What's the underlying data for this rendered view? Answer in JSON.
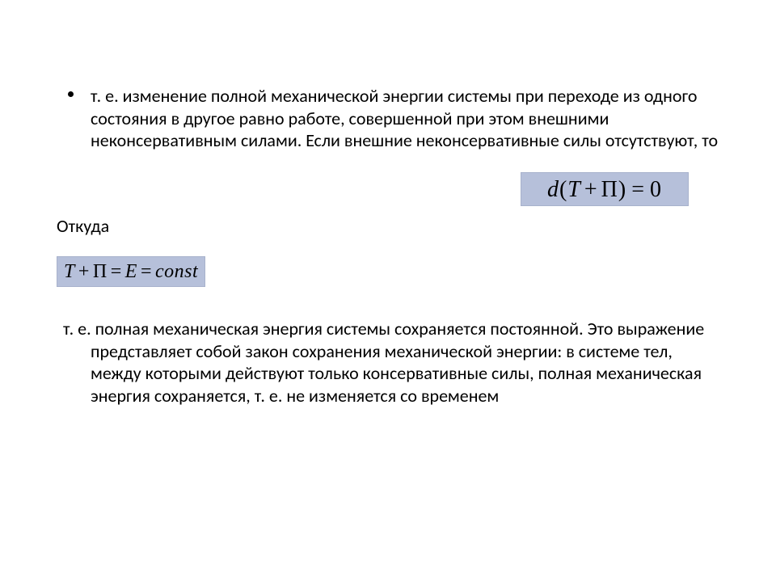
{
  "bullet1": {
    "text": "т. е. изменение полной механической энергии системы при переходе из одного состояния в другое равно работе, совершенной при этом внешними неконсервативным силами. Если внешние неконсервативные силы отсутствуют, то"
  },
  "formula1": {
    "d": "d",
    "open": "(",
    "T": "T",
    "plus": "+",
    "Pi": "П",
    "close": ")",
    "eq": "=",
    "zero": "0",
    "background": "#b6c0da"
  },
  "fromWhere": "Откуда",
  "formula2": {
    "T": "T",
    "plus": "+",
    "Pi": "П",
    "eq1": "=",
    "E": "E",
    "eq2": "=",
    "const": "const",
    "background": "#b6c0da"
  },
  "conclusion": {
    "text": "т. е. полная механическая энергия системы сохраняется постоянной. Это выражение представляет собой закон сохранения механической энергии: в системе тел, между которыми действуют только консервативные силы, полная механическая энергия сохраняется, т. е. не изменяется со временем"
  },
  "style": {
    "font_size_body": 22,
    "font_family_body": "Calibri",
    "font_family_formula": "Times New Roman",
    "formula_bg": "#b6c0da",
    "page_bg": "#ffffff",
    "text_color": "#000000"
  }
}
